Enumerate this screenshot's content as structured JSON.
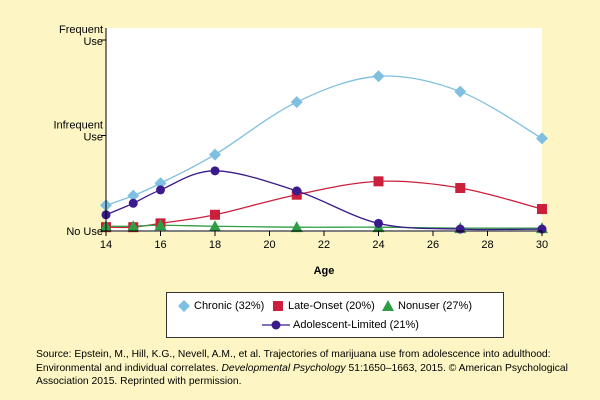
{
  "chart_data": {
    "type": "line",
    "xlabel": "Age",
    "ylabel": "",
    "xlim": [
      14,
      30
    ],
    "ylim": [
      0,
      2
    ],
    "x_ticks": [
      14,
      16,
      18,
      20,
      22,
      24,
      26,
      28,
      30
    ],
    "y_ticks": [
      {
        "value": 0,
        "label": "No Use"
      },
      {
        "value": 1,
        "label": "Infrequent\nUse"
      },
      {
        "value": 2,
        "label": "Frequent\nUse"
      }
    ],
    "series": [
      {
        "name": "Chronic (32%)",
        "color": "#7fbfe0",
        "marker": "diamond",
        "x": [
          14,
          15,
          16,
          18,
          21,
          24,
          27,
          30
        ],
        "y": [
          0.27,
          0.37,
          0.5,
          0.8,
          1.35,
          1.62,
          1.46,
          0.97
        ]
      },
      {
        "name": "Late-Onset (20%)",
        "color": "#cc1f3b",
        "marker": "square",
        "x": [
          14,
          15,
          16,
          18,
          21,
          24,
          27,
          30
        ],
        "y": [
          0.04,
          0.04,
          0.08,
          0.17,
          0.38,
          0.52,
          0.45,
          0.23
        ]
      },
      {
        "name": "Nonuser (27%)",
        "color": "#2e9e44",
        "marker": "triangle",
        "x": [
          14,
          15,
          16,
          18,
          21,
          24,
          27,
          30
        ],
        "y": [
          0.05,
          0.05,
          0.06,
          0.05,
          0.04,
          0.04,
          0.03,
          0.03
        ]
      },
      {
        "name": "Adolescent-Limited (21%)",
        "color": "#3a1a8c",
        "marker": "circle",
        "x": [
          14,
          15,
          16,
          18,
          21,
          24,
          27,
          30
        ],
        "y": [
          0.17,
          0.29,
          0.43,
          0.63,
          0.42,
          0.08,
          0.02,
          0.02
        ]
      }
    ]
  },
  "source": {
    "prefix": "Source: Epstein, M., Hill, K.G., Nevell, A.M., et al. Trajectories of marijuana use from adolescence into adulthood: Environmental and individual correlates. ",
    "journal": "Developmental Psychology",
    "suffix": " 51:1650–1663, 2015. © American Psychological Association 2015. Reprinted with permission."
  }
}
